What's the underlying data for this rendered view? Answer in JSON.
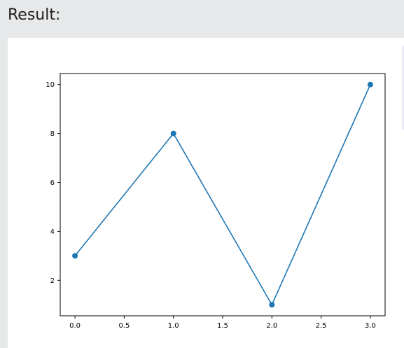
{
  "page": {
    "heading": "Result:"
  },
  "colors": {
    "line": "#1f77b4",
    "marker": "#1f77b4",
    "axes": "#000000",
    "panel": "#ffffff",
    "background": "#e8e9ea"
  },
  "chart_data": {
    "type": "line",
    "x": [
      0,
      1,
      2,
      3
    ],
    "y": [
      3,
      8,
      1,
      10
    ],
    "markers": "circle",
    "xlim": [
      -0.15,
      3.15
    ],
    "ylim": [
      0.55,
      10.45
    ],
    "xticks": [
      0.0,
      0.5,
      1.0,
      1.5,
      2.0,
      2.5,
      3.0
    ],
    "xtick_labels": [
      "0.0",
      "0.5",
      "1.0",
      "1.5",
      "2.0",
      "2.5",
      "3.0"
    ],
    "yticks": [
      2,
      4,
      6,
      8,
      10
    ],
    "ytick_labels": [
      "2",
      "4",
      "6",
      "8",
      "10"
    ],
    "grid": false,
    "legend": "none",
    "title": "",
    "xlabel": "",
    "ylabel": ""
  }
}
